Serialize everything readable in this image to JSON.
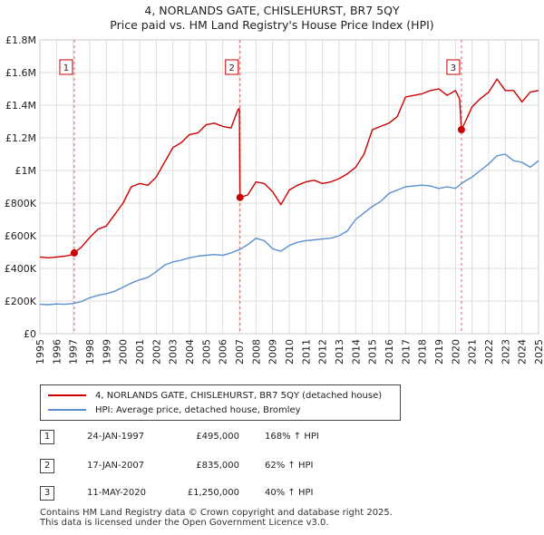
{
  "title_line1": "4, NORLANDS GATE, CHISLEHURST, BR7 5QY",
  "title_line2": "Price paid vs. HM Land Registry's House Price Index (HPI)",
  "colors": {
    "property": "#cc0000",
    "hpi": "#5b8fd0",
    "grid": "#dddddd",
    "marker_line": "#e06060"
  },
  "chart_data": {
    "type": "line",
    "y_tick_labels": [
      "£0",
      "£200K",
      "£400K",
      "£600K",
      "£800K",
      "£1M",
      "£1.2M",
      "£1.4M",
      "£1.6M",
      "£1.8M"
    ],
    "y_ticks": [
      0,
      200000,
      400000,
      600000,
      800000,
      1000000,
      1200000,
      1400000,
      1600000,
      1800000
    ],
    "ylim": [
      0,
      1800000
    ],
    "xlim": [
      1995,
      2025
    ],
    "x_tick_labels": [
      "1995",
      "1996",
      "1997",
      "1998",
      "1999",
      "2000",
      "2001",
      "2002",
      "2003",
      "2004",
      "2005",
      "2006",
      "2007",
      "2008",
      "2009",
      "2010",
      "2011",
      "2012",
      "2013",
      "2014",
      "2015",
      "2016",
      "2017",
      "2018",
      "2019",
      "2020",
      "2021",
      "2022",
      "2023",
      "2024",
      "2025"
    ],
    "series": [
      {
        "name": "4, NORLANDS GATE, CHISLEHURST, BR7 5QY (detached house)",
        "color": "#cc0000",
        "x": [
          1995.0,
          1995.5,
          1996.0,
          1996.5,
          1997.0,
          1997.07,
          1997.5,
          1998.0,
          1998.5,
          1999.0,
          1999.5,
          2000.0,
          2000.5,
          2001.0,
          2001.5,
          2002.0,
          2002.5,
          2003.0,
          2003.5,
          2004.0,
          2004.5,
          2005.0,
          2005.5,
          2006.0,
          2006.5,
          2006.9,
          2007.0,
          2007.04,
          2007.5,
          2008.0,
          2008.5,
          2009.0,
          2009.5,
          2010.0,
          2010.5,
          2011.0,
          2011.5,
          2012.0,
          2012.5,
          2013.0,
          2013.5,
          2014.0,
          2014.5,
          2015.0,
          2015.5,
          2016.0,
          2016.5,
          2017.0,
          2017.5,
          2018.0,
          2018.5,
          2019.0,
          2019.5,
          2020.0,
          2020.25,
          2020.36,
          2020.6,
          2021.0,
          2021.5,
          2022.0,
          2022.5,
          2023.0,
          2023.5,
          2024.0,
          2024.5,
          2025.0
        ],
        "values": [
          470000,
          465000,
          470000,
          475000,
          485000,
          495000,
          530000,
          590000,
          640000,
          660000,
          730000,
          800000,
          900000,
          920000,
          910000,
          960000,
          1050000,
          1140000,
          1170000,
          1220000,
          1230000,
          1280000,
          1290000,
          1270000,
          1260000,
          1370000,
          1380000,
          835000,
          850000,
          930000,
          920000,
          870000,
          790000,
          880000,
          910000,
          930000,
          940000,
          920000,
          930000,
          950000,
          980000,
          1020000,
          1100000,
          1250000,
          1270000,
          1290000,
          1330000,
          1450000,
          1460000,
          1470000,
          1490000,
          1500000,
          1460000,
          1490000,
          1440000,
          1250000,
          1300000,
          1390000,
          1440000,
          1480000,
          1560000,
          1490000,
          1490000,
          1420000,
          1480000,
          1490000
        ]
      },
      {
        "name": "HPI: Average price, detached house, Bromley",
        "color": "#5b8fd0",
        "x": [
          1995.0,
          1995.5,
          1996.0,
          1996.5,
          1997.0,
          1997.5,
          1998.0,
          1998.5,
          1999.0,
          1999.5,
          2000.0,
          2000.5,
          2001.0,
          2001.5,
          2002.0,
          2002.5,
          2003.0,
          2003.5,
          2004.0,
          2004.5,
          2005.0,
          2005.5,
          2006.0,
          2006.5,
          2007.0,
          2007.5,
          2008.0,
          2008.5,
          2009.0,
          2009.5,
          2010.0,
          2010.5,
          2011.0,
          2011.5,
          2012.0,
          2012.5,
          2013.0,
          2013.5,
          2014.0,
          2014.5,
          2015.0,
          2015.5,
          2016.0,
          2016.5,
          2017.0,
          2017.5,
          2018.0,
          2018.5,
          2019.0,
          2019.5,
          2020.0,
          2020.5,
          2021.0,
          2021.5,
          2022.0,
          2022.5,
          2023.0,
          2023.5,
          2024.0,
          2024.5,
          2025.0
        ],
        "values": [
          180000,
          178000,
          182000,
          180000,
          185000,
          197000,
          220000,
          235000,
          245000,
          260000,
          285000,
          310000,
          330000,
          345000,
          380000,
          420000,
          440000,
          450000,
          465000,
          475000,
          480000,
          485000,
          480000,
          495000,
          515000,
          545000,
          585000,
          570000,
          520000,
          505000,
          540000,
          560000,
          570000,
          575000,
          580000,
          585000,
          600000,
          630000,
          700000,
          740000,
          780000,
          810000,
          860000,
          880000,
          900000,
          905000,
          910000,
          905000,
          890000,
          900000,
          890000,
          930000,
          960000,
          1000000,
          1040000,
          1090000,
          1100000,
          1060000,
          1050000,
          1020000,
          1060000
        ]
      }
    ],
    "sales": [
      {
        "num": "1",
        "x": 1997.07,
        "value": 495000
      },
      {
        "num": "2",
        "x": 2007.04,
        "value": 835000
      },
      {
        "num": "3",
        "x": 2020.36,
        "value": 1250000
      }
    ]
  },
  "legend": {
    "property": "4, NORLANDS GATE, CHISLEHURST, BR7 5QY (detached house)",
    "hpi": "HPI: Average price, detached house, Bromley"
  },
  "transactions": [
    {
      "num": "1",
      "date": "24-JAN-1997",
      "price": "£495,000",
      "hpi": "168% ↑ HPI"
    },
    {
      "num": "2",
      "date": "17-JAN-2007",
      "price": "£835,000",
      "hpi": "62% ↑ HPI"
    },
    {
      "num": "3",
      "date": "11-MAY-2020",
      "price": "£1,250,000",
      "hpi": "40% ↑ HPI"
    }
  ],
  "footer_line1": "Contains HM Land Registry data © Crown copyright and database right 2025.",
  "footer_line2": "This data is licensed under the Open Government Licence v3.0."
}
